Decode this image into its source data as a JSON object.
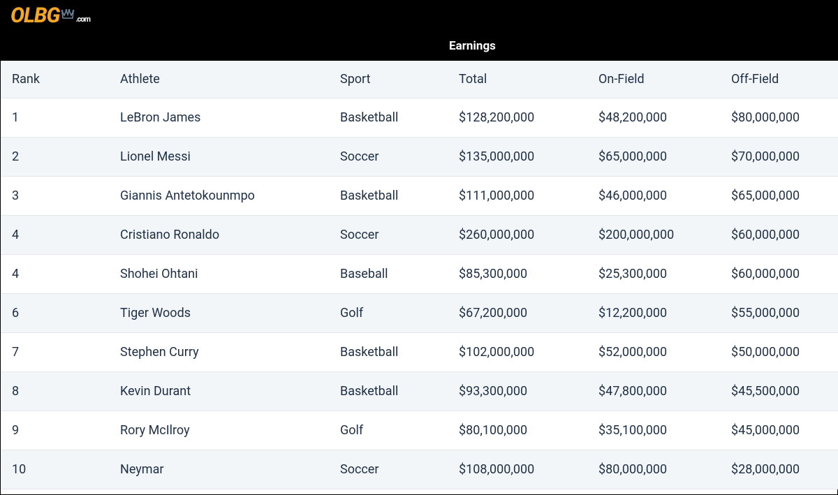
{
  "logo": {
    "main": "OLBG",
    "suffix": ".com",
    "main_color": "#f5a623",
    "suffix_color": "#ffffff",
    "crown_color": "#6b8299"
  },
  "header": {
    "earnings_label": "Earnings",
    "bg_color": "#000000",
    "fg_color": "#ffffff"
  },
  "table": {
    "columns": [
      "Rank",
      "Athlete",
      "Sport",
      "Total",
      "On-Field",
      "Off-Field"
    ],
    "header_bg": "#f3f6f9",
    "row_alt_bg": "#f3f6f9",
    "row_bg": "#ffffff",
    "border_color": "#e3e8ee",
    "text_color": "#1e2f45",
    "font_size": 18,
    "rows": [
      {
        "rank": "1",
        "athlete": "LeBron James",
        "sport": "Basketball",
        "total": "$128,200,000",
        "on": "$48,200,000",
        "off": "$80,000,000"
      },
      {
        "rank": "2",
        "athlete": "Lionel Messi",
        "sport": "Soccer",
        "total": "$135,000,000",
        "on": "$65,000,000",
        "off": "$70,000,000"
      },
      {
        "rank": "3",
        "athlete": "Giannis Antetokounmpo",
        "sport": "Basketball",
        "total": "$111,000,000",
        "on": "$46,000,000",
        "off": "$65,000,000"
      },
      {
        "rank": "4",
        "athlete": "Cristiano Ronaldo",
        "sport": "Soccer",
        "total": "$260,000,000",
        "on": "$200,000,000",
        "off": "$60,000,000"
      },
      {
        "rank": "4",
        "athlete": "Shohei Ohtani",
        "sport": "Baseball",
        "total": "$85,300,000",
        "on": "$25,300,000",
        "off": "$60,000,000"
      },
      {
        "rank": "6",
        "athlete": "Tiger Woods",
        "sport": "Golf",
        "total": "$67,200,000",
        "on": "$12,200,000",
        "off": "$55,000,000"
      },
      {
        "rank": "7",
        "athlete": "Stephen Curry",
        "sport": "Basketball",
        "total": "$102,000,000",
        "on": "$52,000,000",
        "off": "$50,000,000"
      },
      {
        "rank": "8",
        "athlete": "Kevin Durant",
        "sport": "Basketball",
        "total": "$93,300,000",
        "on": "$47,800,000",
        "off": "$45,500,000"
      },
      {
        "rank": "9",
        "athlete": "Rory McIlroy",
        "sport": "Golf",
        "total": "$80,100,000",
        "on": "$35,100,000",
        "off": "$45,000,000"
      },
      {
        "rank": "10",
        "athlete": "Neymar",
        "sport": "Soccer",
        "total": "$108,000,000",
        "on": "$80,000,000",
        "off": "$28,000,000"
      }
    ]
  }
}
